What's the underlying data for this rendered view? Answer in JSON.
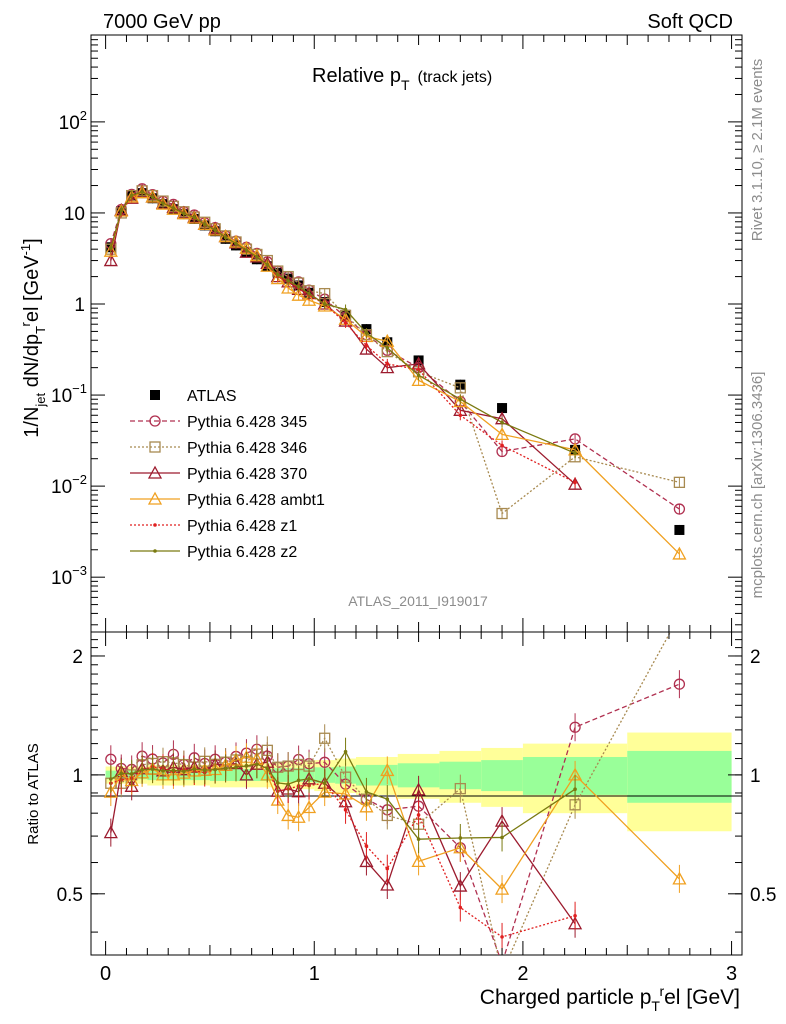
{
  "header": {
    "left": "7000 GeV pp",
    "right": "Soft QCD"
  },
  "plot": {
    "title_main": "Relative p",
    "title_sub": "T",
    "title_tail": "(track jets)",
    "ylabel": "1/N_jet dN/dp_T^rel [GeV^-1]",
    "ylabel_parts": {
      "a": "1/N",
      "b": "jet",
      "c": " dN/dp",
      "d": "T",
      "e": "r",
      "f": "el [GeV",
      "g": "-1",
      "h": "]"
    },
    "xlabel_parts": {
      "a": "Charged particle p",
      "b": "T",
      "c": "r",
      "d": "el [GeV]"
    },
    "ratio_ylabel": "Ratio to ATLAS",
    "analysis_label": "ATLAS_2011_I919017",
    "side_right_top": "Rivet 3.1.10, ≥ 2.1M events",
    "side_right_bottom": "mcplots.cern.ch [arXiv:1306.3436]",
    "y_ticks": [
      {
        "v": 100,
        "base": "10",
        "exp": "2"
      },
      {
        "v": 10,
        "base": "10",
        "exp": ""
      },
      {
        "v": 1,
        "base": "1",
        "exp": ""
      },
      {
        "v": 0.1,
        "base": "10",
        "exp": "−1"
      },
      {
        "v": 0.01,
        "base": "10",
        "exp": "−2"
      },
      {
        "v": 0.001,
        "base": "10",
        "exp": "−3"
      }
    ],
    "x_ticks": [
      "0",
      "1",
      "2",
      "3"
    ],
    "ratio_ticks": [
      "0.5",
      "1",
      "2"
    ]
  },
  "chart_data": {
    "type": "line",
    "title": "Relative pT (track jets)",
    "xlabel": "Charged particle pTrel [GeV]",
    "ylabel": "1/Njet dN/dpTrel [GeV-1]",
    "xlim": [
      -0.07,
      3.05
    ],
    "ylim": [
      0.00025,
      900
    ],
    "yscale": "log",
    "ratio_ylim": [
      0.35,
      2.3
    ],
    "legend_position": "left-middle",
    "x": [
      0.025,
      0.075,
      0.125,
      0.175,
      0.225,
      0.275,
      0.325,
      0.375,
      0.425,
      0.475,
      0.525,
      0.575,
      0.625,
      0.675,
      0.725,
      0.775,
      0.825,
      0.875,
      0.925,
      0.975,
      1.05,
      1.15,
      1.25,
      1.35,
      1.5,
      1.7,
      1.9,
      2.25,
      2.75
    ],
    "ratio_band_edges": [
      0,
      0.2,
      0.5,
      0.8,
      1.0,
      1.1,
      1.2,
      1.4,
      1.6,
      1.8,
      2.0,
      2.5,
      3.0
    ],
    "ratio_band_yellow": [
      0.05,
      0.06,
      0.07,
      0.08,
      0.09,
      0.1,
      0.11,
      0.13,
      0.15,
      0.17,
      0.2,
      0.28,
      0.7
    ],
    "ratio_band_green": [
      0.025,
      0.03,
      0.035,
      0.04,
      0.045,
      0.05,
      0.06,
      0.07,
      0.08,
      0.09,
      0.11,
      0.15,
      0.38
    ],
    "series": [
      {
        "name": "ATLAS",
        "color": "#000000",
        "marker": "square-filled",
        "line": "none",
        "values": [
          4.2,
          10.5,
          15.5,
          16.5,
          14.5,
          12.5,
          11,
          9.7,
          8.6,
          7.3,
          6.3,
          5.2,
          4.4,
          3.7,
          3.1,
          2.6,
          2.2,
          1.9,
          1.6,
          1.33,
          1.05,
          0.76,
          0.53,
          0.38,
          0.24,
          0.13,
          0.072,
          0.025,
          0.0033
        ]
      },
      {
        "name": "Pythia 6.428 345",
        "color": "#b03050",
        "marker": "circle-open",
        "line": "dashed",
        "values": [
          4.6,
          10.9,
          16.0,
          18.4,
          15.9,
          13.4,
          12.4,
          10.3,
          9.5,
          7.8,
          6.9,
          5.6,
          4.9,
          4.2,
          3.6,
          2.9,
          2.3,
          2.0,
          1.75,
          1.42,
          1.13,
          0.72,
          0.46,
          0.31,
          0.2,
          0.085,
          0.024,
          0.033,
          0.0056
        ]
      },
      {
        "name": "Pythia 6.428 346",
        "color": "#a88a50",
        "marker": "square-open",
        "line": "dotted",
        "values": [
          4.0,
          10.0,
          15.5,
          17.5,
          15.5,
          13.5,
          11.8,
          10.3,
          9.0,
          7.9,
          6.7,
          5.6,
          4.8,
          4.0,
          3.5,
          3.0,
          2.3,
          2.0,
          1.7,
          1.4,
          1.3,
          0.75,
          0.46,
          0.3,
          0.18,
          0.12,
          0.005,
          0.021,
          0.011
        ]
      },
      {
        "name": "Pythia 6.428 370",
        "color": "#9c1b2e",
        "marker": "triangle-open",
        "line": "solid",
        "values": [
          3.0,
          10.7,
          14.5,
          17.1,
          15.0,
          12.8,
          11.5,
          10.0,
          9.0,
          7.5,
          6.7,
          5.5,
          4.7,
          3.7,
          3.3,
          2.8,
          2.0,
          1.75,
          1.45,
          1.3,
          1.0,
          0.65,
          0.32,
          0.2,
          0.22,
          0.068,
          0.055,
          0.0105,
          0.0
        ]
      },
      {
        "name": "Pythia 6.428 ambt1",
        "color": "#f0a020",
        "marker": "triangle-open",
        "line": "solid",
        "values": [
          3.8,
          10.5,
          15.0,
          16.7,
          15.0,
          12.5,
          11.0,
          9.8,
          8.8,
          7.5,
          6.5,
          5.5,
          4.8,
          4.1,
          3.4,
          2.6,
          1.9,
          1.5,
          1.25,
          1.1,
          0.95,
          0.68,
          0.44,
          0.39,
          0.145,
          0.085,
          0.037,
          0.025,
          0.0018
        ]
      },
      {
        "name": "Pythia 6.428 z1",
        "color": "#e02020",
        "marker": "dot",
        "line": "dotted",
        "values": [
          4.0,
          10.2,
          15.2,
          17.0,
          15.2,
          13.0,
          11.2,
          10.0,
          8.8,
          7.4,
          6.5,
          5.4,
          4.6,
          3.9,
          3.3,
          2.7,
          2.0,
          1.75,
          1.5,
          1.25,
          1.0,
          0.62,
          0.35,
          0.22,
          0.19,
          0.06,
          0.028,
          0.011,
          0.0
        ]
      },
      {
        "name": "Pythia 6.428 z2",
        "color": "#7a7a10",
        "marker": "dot",
        "line": "solid",
        "values": [
          4.1,
          10.6,
          15.6,
          17.0,
          15.0,
          12.8,
          11.3,
          9.9,
          8.9,
          7.5,
          6.5,
          5.4,
          4.6,
          3.9,
          3.3,
          2.7,
          2.1,
          1.8,
          1.55,
          1.3,
          1.0,
          0.87,
          0.48,
          0.33,
          0.165,
          0.09,
          0.05,
          0.023,
          0.0
        ]
      }
    ]
  }
}
